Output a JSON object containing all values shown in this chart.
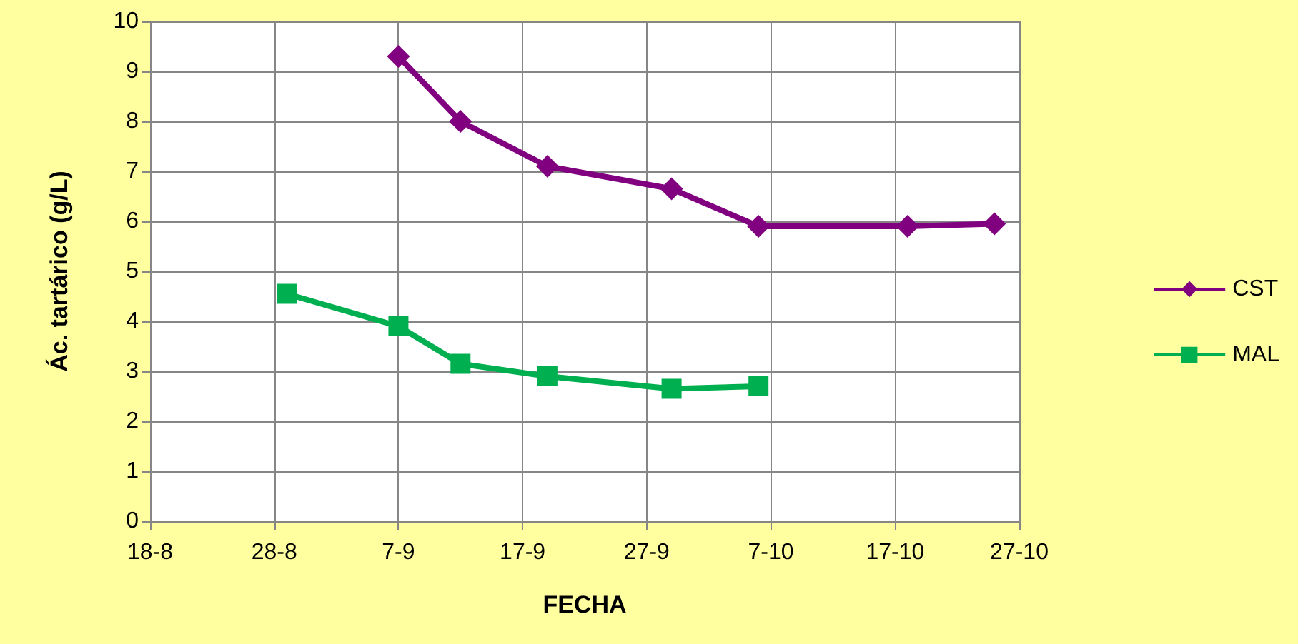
{
  "chart_data": {
    "type": "line",
    "xlabel": "FECHA",
    "ylabel": "Ác. tartárico (g/L)",
    "grid": true,
    "legend": "right",
    "xlim": [
      "--08-18",
      "--10-27"
    ],
    "xticks": [
      {
        "value": "--08-18",
        "label": "18-8"
      },
      {
        "value": "--08-28",
        "label": "28-8"
      },
      {
        "value": "--09-07",
        "label": "7-9"
      },
      {
        "value": "--09-17",
        "label": "17-9"
      },
      {
        "value": "--09-27",
        "label": "27-9"
      },
      {
        "value": "--10-07",
        "label": "7-10"
      },
      {
        "value": "--10-17",
        "label": "17-10"
      },
      {
        "value": "--10-27",
        "label": "27-10"
      }
    ],
    "ylim": [
      0,
      10
    ],
    "yticks": [
      0,
      1,
      2,
      3,
      4,
      5,
      6,
      7,
      8,
      9,
      10
    ],
    "series": [
      {
        "name": "CST",
        "color": "#800080",
        "marker": "diamond",
        "x": [
          "--09-07",
          "--09-12",
          "--09-19",
          "--09-29",
          "--10-06",
          "--10-18",
          "--10-25"
        ],
        "values": [
          9.3,
          8.0,
          7.1,
          6.65,
          5.9,
          5.9,
          5.95
        ]
      },
      {
        "name": "MAL",
        "color": "#00b050",
        "marker": "square",
        "x": [
          "--08-29",
          "--09-07",
          "--09-12",
          "--09-19",
          "--09-29",
          "--10-06"
        ],
        "values": [
          4.55,
          3.9,
          3.15,
          2.9,
          2.65,
          2.7
        ]
      }
    ]
  }
}
